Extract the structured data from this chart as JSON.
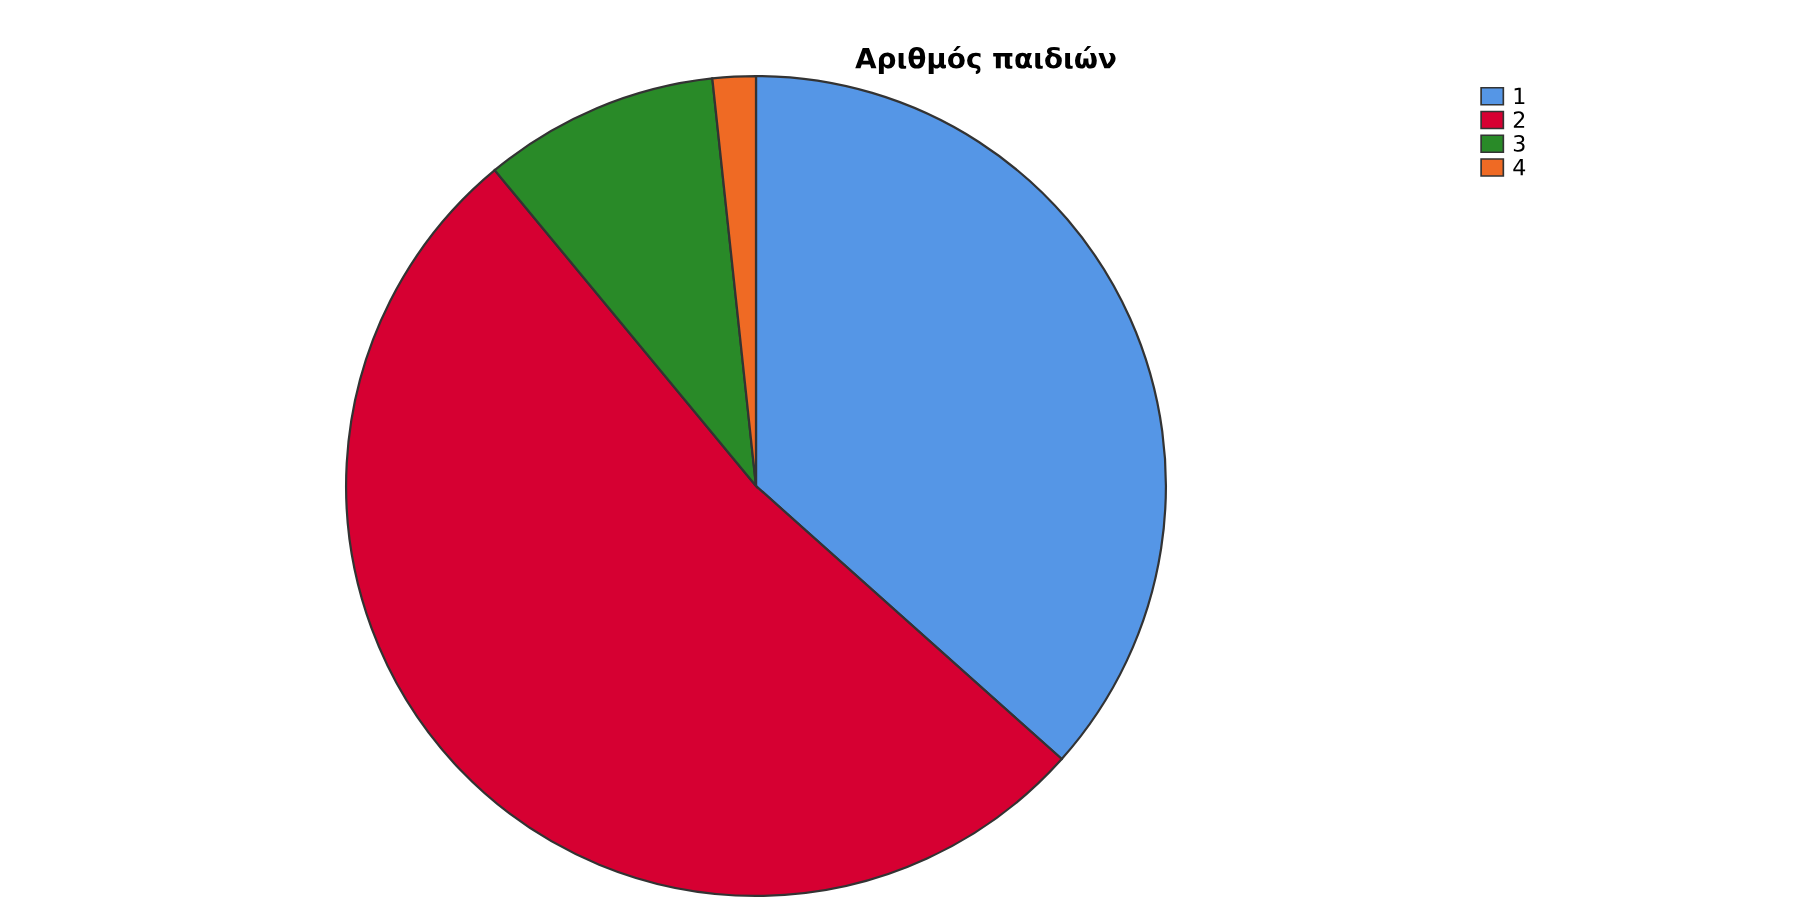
{
  "chart_data": {
    "type": "pie",
    "title": "Αριθμός παιδιών",
    "categories": [
      "1",
      "2",
      "3",
      "4"
    ],
    "values": [
      36.6,
      52.4,
      9.3,
      1.7
    ],
    "colors": [
      "#5596e6",
      "#d60032",
      "#298a28",
      "#ef6a24"
    ],
    "legend": "top right"
  }
}
